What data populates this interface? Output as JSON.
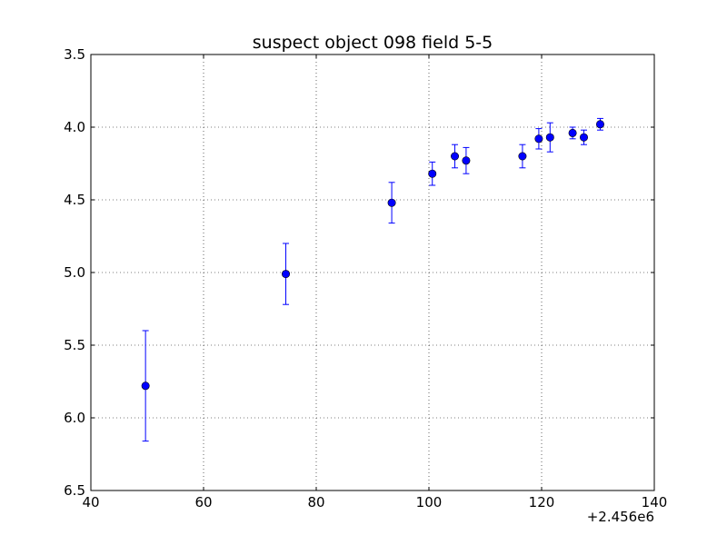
{
  "chart_data": {
    "type": "scatter",
    "title": "suspect object 098 field 5-5",
    "xlabel": "",
    "ylabel": "",
    "x_offset_label": "+2.456e6",
    "xlim": [
      40,
      140
    ],
    "ylim": [
      6.5,
      3.5
    ],
    "y_inverted": true,
    "grid": true,
    "x_ticks": [
      40,
      60,
      80,
      100,
      120,
      140
    ],
    "x_tick_labels": [
      "40",
      "60",
      "80",
      "100",
      "120",
      "140"
    ],
    "y_ticks": [
      3.5,
      4.0,
      4.5,
      5.0,
      5.5,
      6.0,
      6.5
    ],
    "y_tick_labels": [
      "3.5",
      "4.0",
      "4.5",
      "5.0",
      "5.5",
      "6.0",
      "6.5"
    ],
    "marker_color": "#0000ff",
    "points": [
      {
        "x": 49.7,
        "y": 5.78,
        "err": 0.38
      },
      {
        "x": 74.6,
        "y": 5.01,
        "err": 0.21
      },
      {
        "x": 93.4,
        "y": 4.52,
        "err": 0.14
      },
      {
        "x": 100.6,
        "y": 4.32,
        "err": 0.08
      },
      {
        "x": 104.6,
        "y": 4.2,
        "err": 0.08
      },
      {
        "x": 106.6,
        "y": 4.23,
        "err": 0.09
      },
      {
        "x": 116.6,
        "y": 4.2,
        "err": 0.08
      },
      {
        "x": 119.5,
        "y": 4.08,
        "err": 0.07
      },
      {
        "x": 121.5,
        "y": 4.07,
        "err": 0.1
      },
      {
        "x": 125.5,
        "y": 4.04,
        "err": 0.04
      },
      {
        "x": 127.5,
        "y": 4.07,
        "err": 0.05
      },
      {
        "x": 130.4,
        "y": 3.98,
        "err": 0.04
      }
    ]
  }
}
